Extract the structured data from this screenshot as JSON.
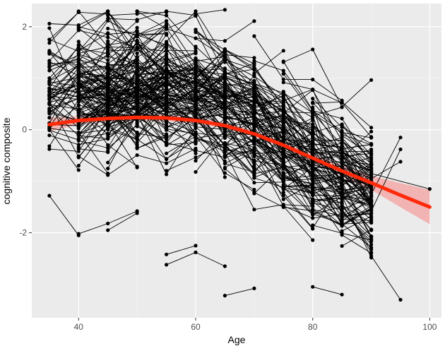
{
  "chart_data": {
    "type": "line",
    "xlabel": "Age",
    "ylabel": "cognitive composite",
    "xlim": [
      32,
      102
    ],
    "ylim": [
      -3.65,
      2.45
    ],
    "x_ticks": [
      40,
      60,
      80,
      100
    ],
    "y_ticks": [
      -2,
      0,
      2
    ],
    "x_tick_labels": [
      "40",
      "60",
      "80",
      "100"
    ],
    "y_tick_labels": [
      "-2",
      "0",
      "2"
    ],
    "grid": true,
    "legend": "none",
    "colors": {
      "panel": "#ebebeb",
      "grid_major": "#ffffff",
      "grid_minor": "#f5f5f5",
      "trajectory": "#000000",
      "smooth": "#ff2a0a",
      "ribbon": "#f4a0a0"
    },
    "observation_ages": [
      35,
      40,
      45,
      50,
      55,
      60,
      65,
      70,
      75,
      80,
      85,
      90,
      95,
      100
    ],
    "cohort_mean_by_age": [
      [
        35,
        0.6
      ],
      [
        40,
        0.7
      ],
      [
        45,
        0.75
      ],
      [
        50,
        0.8
      ],
      [
        55,
        0.75
      ],
      [
        60,
        0.65
      ],
      [
        65,
        0.45
      ],
      [
        70,
        0.2
      ],
      [
        75,
        -0.15
      ],
      [
        80,
        -0.55
      ],
      [
        85,
        -0.85
      ],
      [
        90,
        -1.1
      ]
    ],
    "cohort_spread_by_age": [
      [
        35,
        0.55
      ],
      [
        40,
        0.6
      ],
      [
        45,
        0.6
      ],
      [
        50,
        0.6
      ],
      [
        55,
        0.65
      ],
      [
        60,
        0.65
      ],
      [
        65,
        0.65
      ],
      [
        70,
        0.7
      ],
      [
        75,
        0.7
      ],
      [
        80,
        0.7
      ],
      [
        85,
        0.7
      ],
      [
        90,
        0.6
      ]
    ],
    "series": [
      {
        "x": [
          35,
          40
        ],
        "y": [
          -1.28,
          -2.05
        ]
      },
      {
        "x": [
          40,
          45,
          50
        ],
        "y": [
          -2.02,
          -1.82,
          -1.58
        ]
      },
      {
        "x": [
          45,
          50
        ],
        "y": [
          -1.95,
          -1.62
        ]
      },
      {
        "x": [
          55,
          60
        ],
        "y": [
          -2.42,
          -2.25
        ]
      },
      {
        "x": [
          55,
          60,
          65
        ],
        "y": [
          -2.62,
          -2.38,
          -2.65
        ]
      },
      {
        "x": [
          65,
          70
        ],
        "y": [
          -3.22,
          -3.08
        ]
      },
      {
        "x": [
          80,
          85
        ],
        "y": [
          -3.05,
          -3.2
        ]
      },
      {
        "x": [
          90,
          95
        ],
        "y": [
          -2.45,
          -3.3
        ]
      },
      {
        "x": [
          90,
          95
        ],
        "y": [
          -1.58,
          -0.38
        ]
      },
      {
        "x": [
          90,
          95
        ],
        "y": [
          -0.95,
          -0.62
        ]
      },
      {
        "x": [
          90,
          95
        ],
        "y": [
          -1.25,
          -0.15
        ]
      },
      {
        "x": [
          90,
          100
        ],
        "y": [
          -0.85,
          -1.15
        ]
      },
      {
        "x": [
          35,
          40
        ],
        "y": [
          1.75,
          2.28
        ]
      },
      {
        "x": [
          55,
          60
        ],
        "y": [
          2.3,
          2.22
        ]
      },
      {
        "x": [
          60,
          65
        ],
        "y": [
          2.25,
          2.33
        ]
      },
      {
        "x": [
          45,
          50,
          55
        ],
        "y": [
          2.22,
          2.25,
          2.28
        ]
      }
    ],
    "smooth": {
      "x": [
        35,
        40,
        45,
        50,
        55,
        60,
        65,
        70,
        75,
        80,
        85,
        90,
        95,
        100
      ],
      "y": [
        0.1,
        0.18,
        0.22,
        0.24,
        0.23,
        0.18,
        0.08,
        -0.08,
        -0.3,
        -0.55,
        -0.8,
        -1.03,
        -1.27,
        -1.5
      ],
      "se": [
        0.07,
        0.04,
        0.03,
        0.03,
        0.03,
        0.03,
        0.03,
        0.03,
        0.03,
        0.04,
        0.05,
        0.07,
        0.12,
        0.17
      ]
    }
  }
}
